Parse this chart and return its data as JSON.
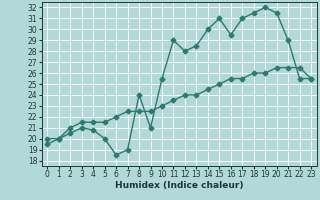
{
  "title": "",
  "xlabel": "Humidex (Indice chaleur)",
  "bg_color": "#b2d8d8",
  "grid_color": "#ffffff",
  "line_color": "#2d7a6e",
  "xlim": [
    -0.5,
    23.5
  ],
  "ylim": [
    17.5,
    32.5
  ],
  "yticks": [
    18,
    19,
    20,
    21,
    22,
    23,
    24,
    25,
    26,
    27,
    28,
    29,
    30,
    31,
    32
  ],
  "xticks": [
    0,
    1,
    2,
    3,
    4,
    5,
    6,
    7,
    8,
    9,
    10,
    11,
    12,
    13,
    14,
    15,
    16,
    17,
    18,
    19,
    20,
    21,
    22,
    23
  ],
  "line1_x": [
    0,
    1,
    2,
    3,
    4,
    5,
    6,
    7,
    8,
    9,
    10,
    11,
    12,
    13,
    14,
    15,
    16,
    17,
    18,
    19,
    20,
    21,
    22,
    23
  ],
  "line1_y": [
    20.0,
    20.0,
    20.5,
    21.0,
    20.8,
    20.0,
    18.5,
    19.0,
    24.0,
    21.0,
    25.5,
    29.0,
    28.0,
    28.5,
    30.0,
    31.0,
    29.5,
    31.0,
    31.5,
    32.0,
    31.5,
    29.0,
    25.5,
    25.5
  ],
  "line2_x": [
    0,
    1,
    2,
    3,
    4,
    5,
    6,
    7,
    8,
    9,
    10,
    11,
    12,
    13,
    14,
    15,
    16,
    17,
    18,
    19,
    20,
    21,
    22,
    23
  ],
  "line2_y": [
    19.5,
    20.0,
    21.0,
    21.5,
    21.5,
    21.5,
    22.0,
    22.5,
    22.5,
    22.5,
    23.0,
    23.5,
    24.0,
    24.0,
    24.5,
    25.0,
    25.5,
    25.5,
    26.0,
    26.0,
    26.5,
    26.5,
    26.5,
    25.5
  ],
  "marker": "D",
  "markersize": 2.5,
  "linewidth": 1.0,
  "tick_fontsize": 5.5,
  "xlabel_fontsize": 6.5
}
